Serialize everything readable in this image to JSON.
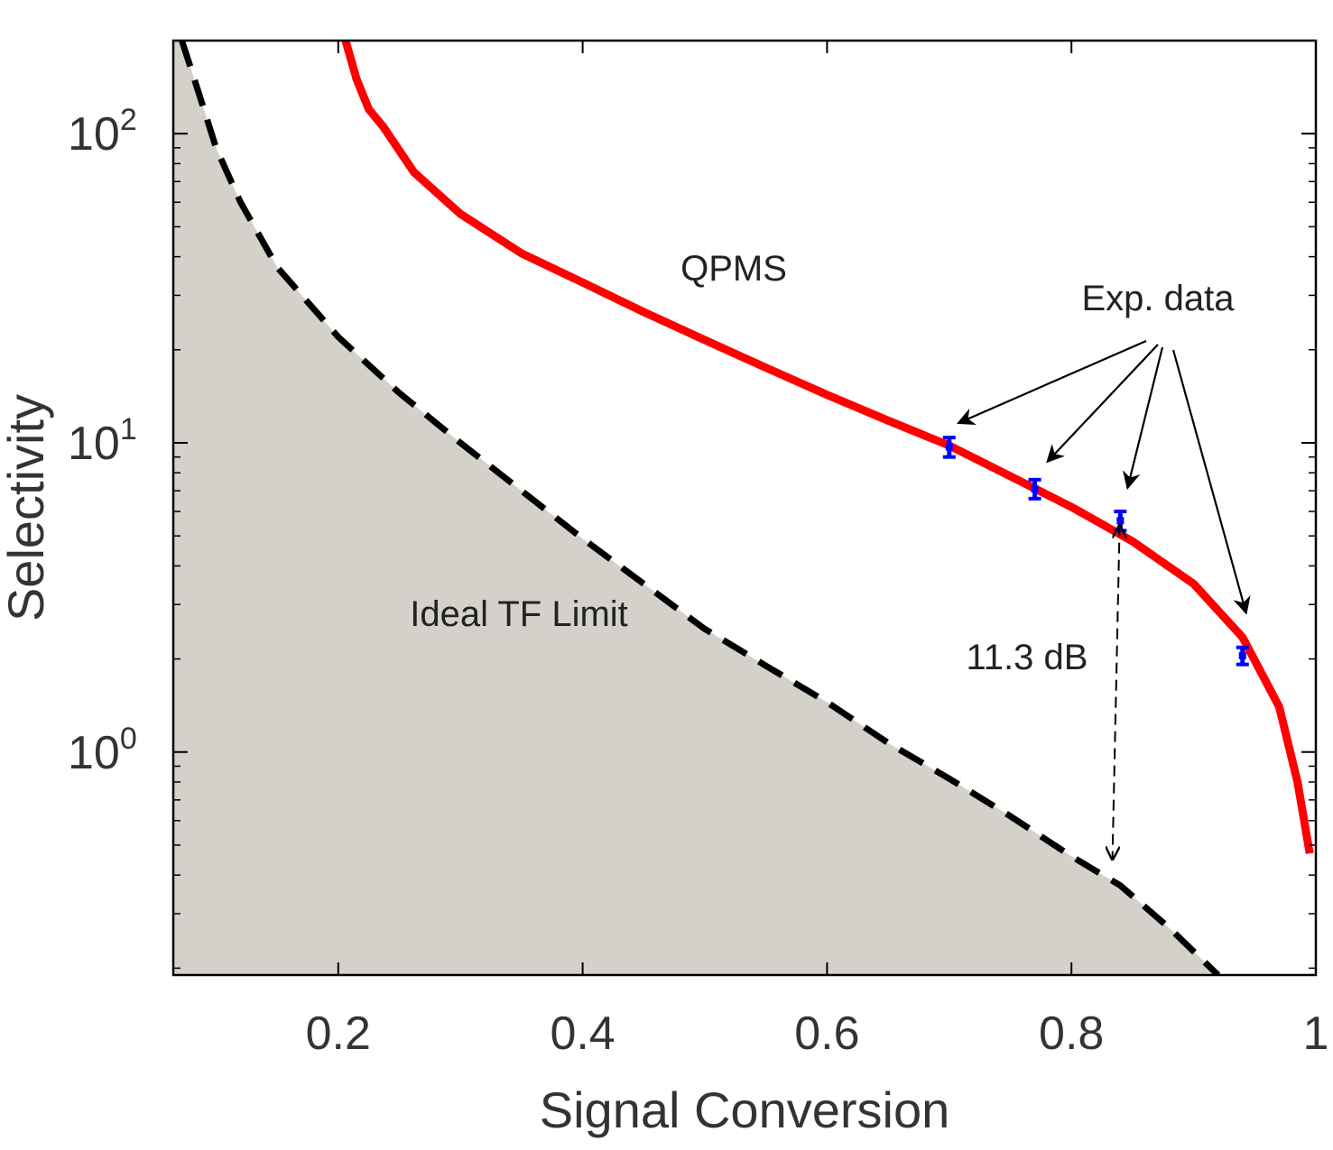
{
  "chart_data": {
    "type": "line",
    "title": "",
    "xlabel": "Signal Conversion",
    "ylabel": "Selectivity",
    "xlim": [
      0.065,
      1.0
    ],
    "ylim": [
      0.19,
      200
    ],
    "yscale": "log",
    "grid": false,
    "x_ticks": [
      {
        "value": 0.2,
        "label": "0.2"
      },
      {
        "value": 0.4,
        "label": "0.4"
      },
      {
        "value": 0.6,
        "label": "0.6"
      },
      {
        "value": 0.8,
        "label": "0.8"
      },
      {
        "value": 1.0,
        "label": "1"
      }
    ],
    "y_ticks": [
      {
        "value": 1,
        "base": "10",
        "exp": "0"
      },
      {
        "value": 10,
        "base": "10",
        "exp": "1"
      },
      {
        "value": 100,
        "base": "10",
        "exp": "2"
      }
    ],
    "series": [
      {
        "name": "QPMS",
        "style": "solid",
        "color": "#ff0000",
        "x": [
          0.206,
          0.215,
          0.225,
          0.237,
          0.262,
          0.3,
          0.35,
          0.4,
          0.45,
          0.5,
          0.55,
          0.6,
          0.65,
          0.7,
          0.75,
          0.8,
          0.85,
          0.9,
          0.94,
          0.97,
          0.985,
          0.995
        ],
        "y": [
          200,
          150,
          120,
          105,
          75,
          55,
          41,
          33,
          26.5,
          21.5,
          17.5,
          14.3,
          11.8,
          9.8,
          7.8,
          6.2,
          4.8,
          3.5,
          2.35,
          1.4,
          0.8,
          0.47
        ]
      },
      {
        "name": "Ideal TF Limit",
        "style": "dashed",
        "color": "#000000",
        "x": [
          0.072,
          0.08,
          0.09,
          0.1,
          0.12,
          0.15,
          0.2,
          0.25,
          0.3,
          0.35,
          0.4,
          0.45,
          0.5,
          0.55,
          0.6,
          0.65,
          0.7,
          0.75,
          0.8,
          0.84,
          0.88,
          0.92
        ],
        "y": [
          200,
          160,
          120,
          90,
          60,
          37,
          22,
          14.5,
          10,
          7,
          4.9,
          3.5,
          2.5,
          1.9,
          1.45,
          1.07,
          0.82,
          0.62,
          0.46,
          0.37,
          0.27,
          0.19
        ]
      }
    ],
    "experimental": {
      "name": "Exp. data",
      "color": "#0000ff",
      "points": [
        {
          "x": 0.7,
          "y": 9.7,
          "err": 0.7
        },
        {
          "x": 0.77,
          "y": 7.1,
          "err": 0.5
        },
        {
          "x": 0.84,
          "y": 5.6,
          "err": 0.4
        },
        {
          "x": 0.94,
          "y": 2.05,
          "err": 0.13
        }
      ]
    },
    "annotations": {
      "qpms_label": "QPMS",
      "exp_label": "Exp. data",
      "ideal_label": "Ideal TF Limit",
      "gap_label": "11.3 dB",
      "gap_x": 0.835,
      "gap_y_top": 5.4,
      "gap_y_bottom": 0.45
    },
    "colors": {
      "fill": "#d4d1cb",
      "axis": "#000000"
    }
  }
}
